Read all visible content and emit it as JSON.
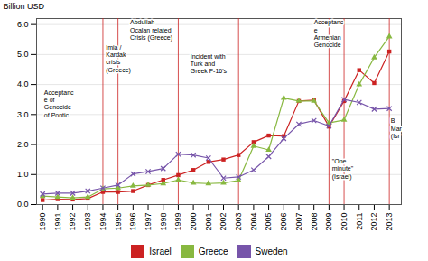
{
  "chart_data": {
    "type": "line",
    "x": [
      1990,
      1991,
      1992,
      1993,
      1994,
      1995,
      1996,
      1997,
      1998,
      1999,
      2000,
      2001,
      2002,
      2003,
      2004,
      2005,
      2006,
      2007,
      2008,
      2009,
      2010,
      2011,
      2012,
      2013
    ],
    "series": [
      {
        "name": "Israel",
        "color": "#cc2222",
        "marker": "square",
        "values": [
          0.15,
          0.18,
          0.17,
          0.2,
          0.42,
          0.42,
          0.45,
          0.65,
          0.82,
          0.98,
          1.15,
          1.42,
          1.5,
          1.65,
          2.08,
          2.3,
          2.28,
          3.45,
          3.48,
          2.6,
          3.45,
          4.48,
          4.05,
          5.1
        ]
      },
      {
        "name": "Greece",
        "color": "#88b840",
        "marker": "triangle",
        "values": [
          0.28,
          0.25,
          0.22,
          0.25,
          0.52,
          0.55,
          0.62,
          0.65,
          0.7,
          0.82,
          0.72,
          0.7,
          0.72,
          0.8,
          1.95,
          1.82,
          3.55,
          3.45,
          3.45,
          2.72,
          2.82,
          4.0,
          4.9,
          5.6
        ]
      },
      {
        "name": "Sweden",
        "color": "#7755aa",
        "marker": "times",
        "values": [
          0.35,
          0.38,
          0.38,
          0.45,
          0.55,
          0.65,
          1.02,
          1.1,
          1.2,
          1.68,
          1.65,
          1.55,
          0.88,
          0.92,
          1.15,
          1.6,
          2.2,
          2.68,
          2.8,
          2.62,
          3.5,
          3.4,
          3.18,
          3.2
        ]
      }
    ],
    "xlim": [
      1989.6,
      2013.8
    ],
    "xticks": [
      1990,
      1991,
      1992,
      1993,
      1994,
      1995,
      1996,
      1997,
      1998,
      1999,
      2000,
      2001,
      2002,
      2003,
      2004,
      2005,
      2006,
      2007,
      2008,
      2009,
      2010,
      2011,
      2012,
      2013
    ],
    "ylim": [
      0,
      6.2
    ],
    "yticks": [
      0,
      1,
      2,
      3,
      4,
      5,
      6
    ],
    "ylabel": "Billion USD",
    "grid": true,
    "legend": "bottom",
    "vlines": {
      "values": [
        1994,
        1995,
        1999,
        2003,
        2010,
        2009,
        2013
      ],
      "color": "#cc2222"
    },
    "annotations": [
      {
        "text": "Acceptanc\ne of\nGenocide\nof Pontic",
        "x": 1990.1,
        "y": 3.85
      },
      {
        "text": "Imia /\nKardak\ncrisis\n(Greece)",
        "x": 1994.2,
        "y": 5.35
      },
      {
        "text": "Abdullah\nOcalan related\nCrisis (Greece)",
        "x": 1995.8,
        "y": 6.18
      },
      {
        "text": "Incident with\nTurk and\nGreek F-16's",
        "x": 1999.8,
        "y": 5.05
      },
      {
        "text": "Acceptanc\ne\nArmenian\nGenocide",
        "x": 2008.0,
        "y": 6.18
      },
      {
        "text": "\"One\nminute\"\n(Israel)",
        "x": 2009.2,
        "y": 1.55
      },
      {
        "text": "B\nMar\n(Isr",
        "x": 2013.1,
        "y": 2.9
      }
    ]
  }
}
